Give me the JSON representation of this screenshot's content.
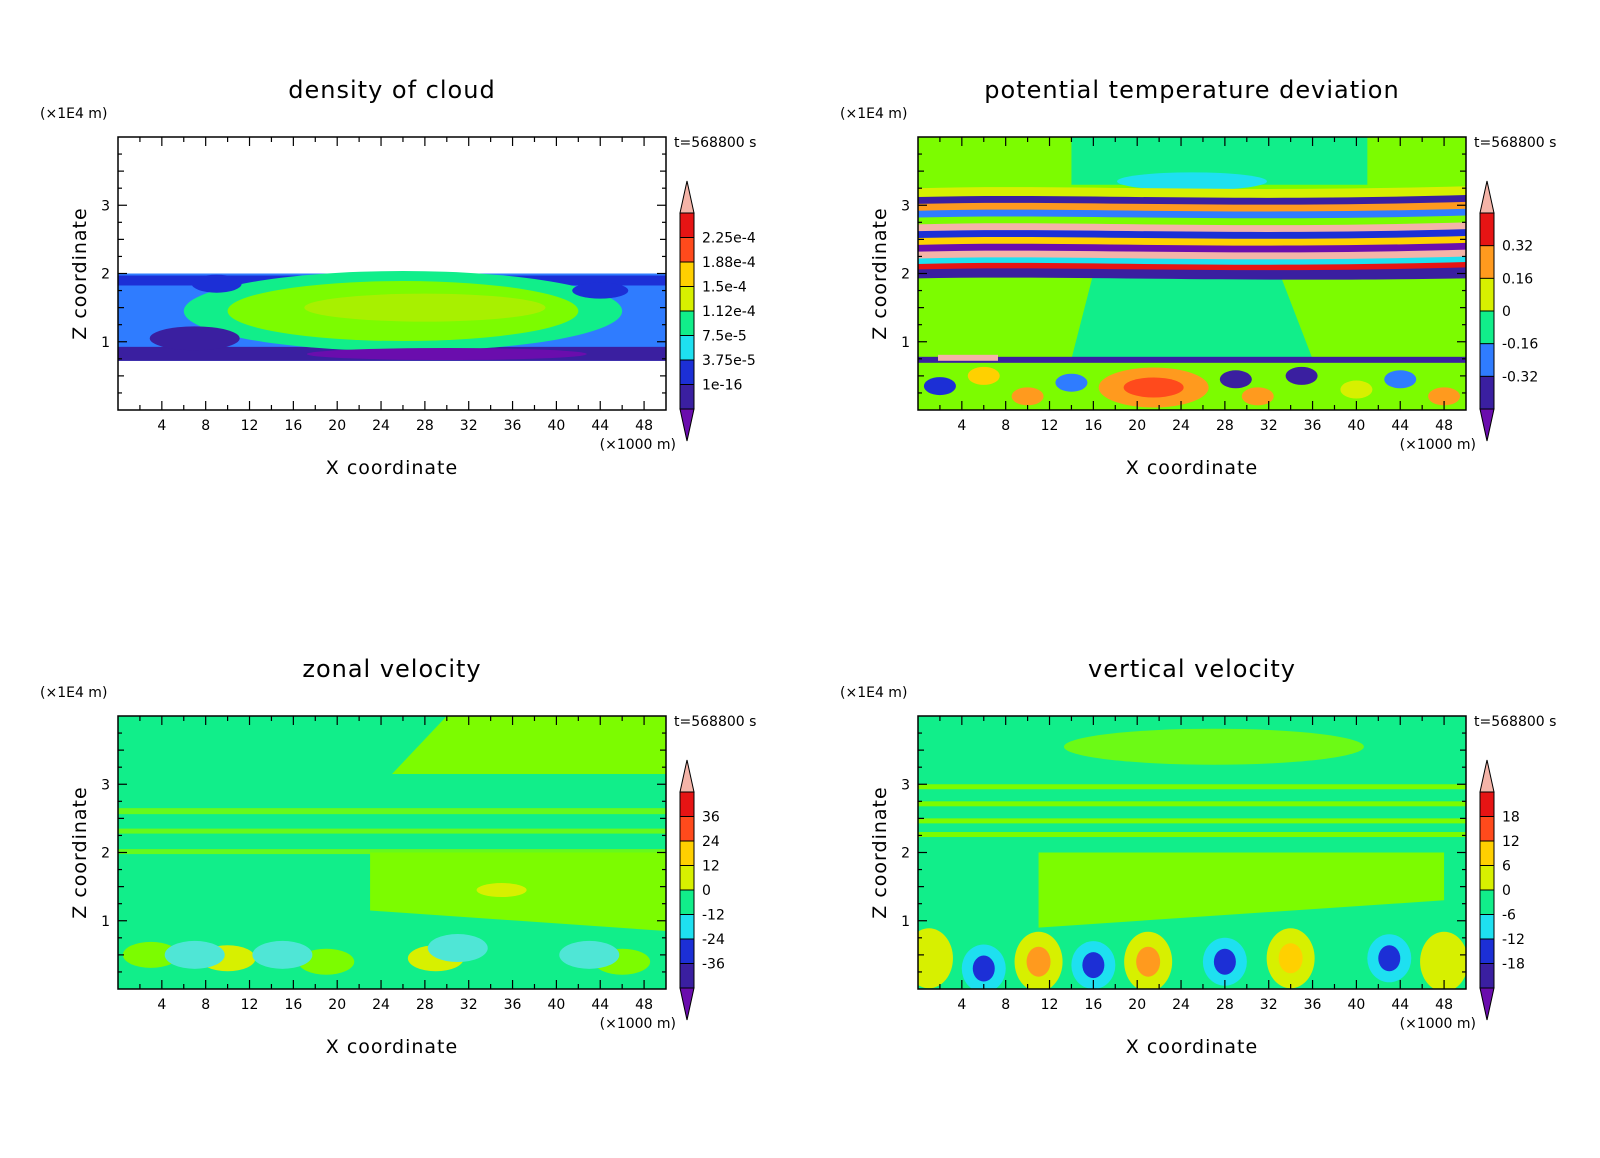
{
  "colors": {
    "palette": [
      "#6a0dad",
      "#3a1fa0",
      "#1c2fd6",
      "#2f7cff",
      "#1ee0f0",
      "#11ee8a",
      "#7cfc00",
      "#d7f000",
      "#ffd000",
      "#ff9a1e",
      "#ff4a1c",
      "#e61414",
      "#f4b4a8"
    ],
    "background": "#00f58c",
    "axis": "#000000"
  },
  "chart_data": [
    {
      "type": "heatmap",
      "title": "density of cloud",
      "xlabel": "X coordinate",
      "ylabel": "Z coordinate",
      "x_unit": "(×1000 m)",
      "y_unit": "(×1E4 m)",
      "time_label": "t=568800 s",
      "xlim": [
        0,
        50
      ],
      "ylim": [
        0,
        4
      ],
      "x_ticks": [
        "4",
        "8",
        "12",
        "16",
        "20",
        "24",
        "28",
        "32",
        "36",
        "40",
        "44",
        "48"
      ],
      "y_ticks": [
        "1",
        "2",
        "3"
      ],
      "colorbar_labels": [
        "2.25e-4",
        "1.88e-4",
        "1.5e-4",
        "1.12e-4",
        "7.5e-5",
        "3.75e-5",
        "1e-16"
      ],
      "background": "white",
      "regions": [
        {
          "x": [
            0,
            50
          ],
          "y": [
            0.72,
            2.0
          ],
          "level": "blue"
        },
        {
          "x": [
            6,
            46
          ],
          "y": [
            1.0,
            1.9
          ],
          "level": "green"
        },
        {
          "x": [
            12,
            42
          ],
          "y": [
            1.05,
            1.8
          ],
          "level": "yellow-green"
        },
        {
          "x": [
            2,
            12
          ],
          "y": [
            0.8,
            1.3
          ],
          "level": "dark-blue"
        }
      ]
    },
    {
      "type": "heatmap",
      "title": "potential temperature deviation",
      "xlabel": "X coordinate",
      "ylabel": "Z coordinate",
      "x_unit": "(×1000 m)",
      "y_unit": "(×1E4 m)",
      "time_label": "t=568800 s",
      "xlim": [
        0,
        50
      ],
      "ylim": [
        0,
        4
      ],
      "x_ticks": [
        "4",
        "8",
        "12",
        "16",
        "20",
        "24",
        "28",
        "32",
        "36",
        "40",
        "44",
        "48"
      ],
      "y_ticks": [
        "1",
        "2",
        "3"
      ],
      "colorbar_labels": [
        "0.32",
        "0.16",
        "0",
        "-0.16",
        "-0.32"
      ],
      "regions": [
        {
          "x": [
            0,
            50
          ],
          "y": [
            2.0,
            3.3
          ],
          "level": "banded"
        },
        {
          "x": [
            0,
            50
          ],
          "y": [
            0,
            0.75
          ],
          "level": "mixed"
        },
        {
          "x": [
            17,
            26
          ],
          "y": [
            0.08,
            0.58
          ],
          "level": "orange"
        }
      ]
    },
    {
      "type": "heatmap",
      "title": "zonal velocity",
      "xlabel": "X coordinate",
      "ylabel": "Z coordinate",
      "x_unit": "(×1000 m)",
      "y_unit": "(×1E4 m)",
      "time_label": "t=568800 s",
      "xlim": [
        0,
        50
      ],
      "ylim": [
        0,
        4
      ],
      "x_ticks": [
        "4",
        "8",
        "12",
        "16",
        "20",
        "24",
        "28",
        "32",
        "36",
        "40",
        "44",
        "48"
      ],
      "y_ticks": [
        "1",
        "2",
        "3"
      ],
      "colorbar_labels": [
        "36",
        "24",
        "12",
        "0",
        "-12",
        "-24",
        "-36"
      ],
      "regions": [
        {
          "x": [
            23,
            50
          ],
          "y": [
            0.9,
            2.0
          ],
          "level": "green"
        },
        {
          "x": [
            30,
            50
          ],
          "y": [
            3.1,
            4.0
          ],
          "level": "green"
        }
      ]
    },
    {
      "type": "heatmap",
      "title": "vertical velocity",
      "xlabel": "X coordinate",
      "ylabel": "Z coordinate",
      "x_unit": "(×1000 m)",
      "y_unit": "(×1E4 m)",
      "time_label": "t=568800 s",
      "xlim": [
        0,
        50
      ],
      "ylim": [
        0,
        4
      ],
      "x_ticks": [
        "4",
        "8",
        "12",
        "16",
        "20",
        "24",
        "28",
        "32",
        "36",
        "40",
        "44",
        "48"
      ],
      "y_ticks": [
        "1",
        "2",
        "3"
      ],
      "colorbar_labels": [
        "18",
        "12",
        "6",
        "0",
        "-6",
        "-12",
        "-18"
      ],
      "regions": [
        {
          "x": [
            11,
            48
          ],
          "y": [
            0.8,
            2.0
          ],
          "level": "green"
        },
        {
          "x": [
            10,
            12
          ],
          "y": [
            0.15,
            0.5
          ],
          "level": "positive"
        },
        {
          "x": [
            20,
            22
          ],
          "y": [
            0.15,
            0.5
          ],
          "level": "positive"
        },
        {
          "x": [
            33,
            35
          ],
          "y": [
            0.15,
            0.55
          ],
          "level": "positive"
        },
        {
          "x": [
            15,
            17
          ],
          "y": [
            0.15,
            0.45
          ],
          "level": "negative"
        },
        {
          "x": [
            27,
            29
          ],
          "y": [
            0.15,
            0.45
          ],
          "level": "negative"
        }
      ]
    }
  ]
}
